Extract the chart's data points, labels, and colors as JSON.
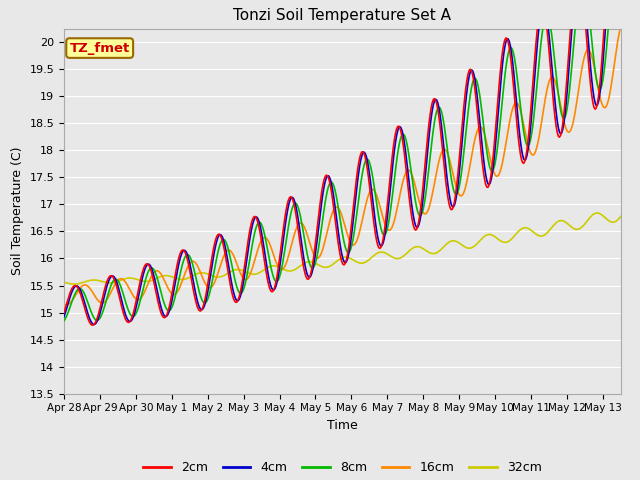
{
  "title": "Tonzi Soil Temperature Set A",
  "xlabel": "Time",
  "ylabel": "Soil Temperature (C)",
  "ylim": [
    13.5,
    20.25
  ],
  "yticks": [
    13.5,
    14.0,
    14.5,
    15.0,
    15.5,
    16.0,
    16.5,
    17.0,
    17.5,
    18.0,
    18.5,
    19.0,
    19.5,
    20.0
  ],
  "background_color": "#e8e8e8",
  "legend_label": "TZ_fmet",
  "legend_box_color": "#ffff99",
  "legend_box_edge": "#996600",
  "line_colors": {
    "2cm": "#ff0000",
    "4cm": "#0000cc",
    "8cm": "#00bb00",
    "16cm": "#ff8800",
    "32cm": "#cccc00"
  },
  "line_width": 1.2,
  "n_points": 500,
  "start_day": 0,
  "end_day": 15.5,
  "xtick_days": [
    0,
    1,
    2,
    3,
    4,
    5,
    6,
    7,
    8,
    9,
    10,
    11,
    12,
    13,
    14,
    15
  ],
  "xtick_labels": [
    "Apr 28",
    "Apr 29",
    "Apr 30",
    "May 1",
    "May 2",
    "May 3",
    "May 4",
    "May 5",
    "May 6",
    "May 7",
    "May 8",
    "May 9",
    "May 10",
    "May 11",
    "May 12",
    "May 13"
  ]
}
